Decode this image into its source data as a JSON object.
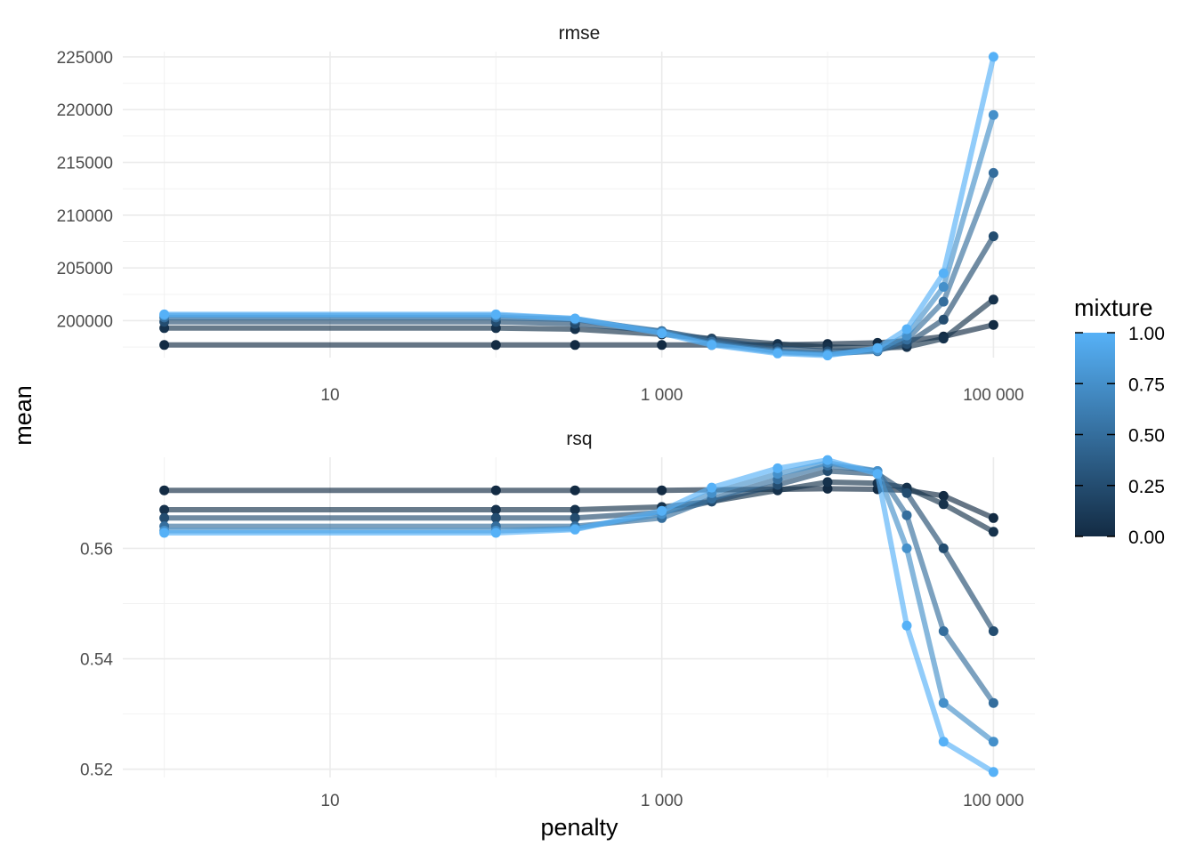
{
  "chart_data": {
    "type": "line",
    "xlabel": "penalty",
    "ylabel": "mean",
    "x_scale": "log10",
    "x_range": [
      1,
      100000
    ],
    "x_ticks": [
      10,
      1000,
      100000
    ],
    "x_tick_labels": [
      "10",
      "1 000",
      "100 000"
    ],
    "color_variable": "mixture",
    "color_range": [
      0,
      1
    ],
    "color_low": "#132B43",
    "color_high": "#56B1F7",
    "legend": {
      "title": "mixture",
      "position": "right",
      "ticks": [
        0.0,
        0.25,
        0.5,
        0.75,
        1.0
      ],
      "tick_labels": [
        "0.00",
        "0.25",
        "0.50",
        "0.75",
        "1.00"
      ]
    },
    "grid": true,
    "panels": [
      {
        "label": "rmse",
        "ylim": [
          196500,
          225500
        ],
        "y_ticks": [
          200000,
          205000,
          210000,
          215000,
          220000,
          225000
        ],
        "y_tick_labels": [
          "200000",
          "205000",
          "210000",
          "215000",
          "220000",
          "225000"
        ],
        "x": [
          1,
          100,
          300,
          1000,
          2000,
          5000,
          10000,
          20000,
          30000,
          50000,
          100000
        ],
        "series": [
          {
            "mixture": 0.0,
            "values": [
              197700,
              197700,
              197700,
              197700,
              197700,
              197700,
              197800,
              197900,
              198100,
              198500,
              199600
            ]
          },
          {
            "mixture": 0.05,
            "values": [
              199300,
              199300,
              199200,
              198700,
              198300,
              197800,
              197500,
              197400,
              197500,
              198300,
              202000
            ]
          },
          {
            "mixture": 0.25,
            "values": [
              199900,
              199900,
              199700,
              199000,
              198200,
              197400,
              197100,
              197200,
              197800,
              200100,
              208000
            ]
          },
          {
            "mixture": 0.5,
            "values": [
              200300,
              200300,
              200100,
              199000,
              198000,
              197100,
              196900,
              197100,
              198200,
              201800,
              214000
            ]
          },
          {
            "mixture": 0.75,
            "values": [
              200500,
              200500,
              200200,
              198900,
              197800,
              197000,
              196800,
              197200,
              198600,
              203200,
              219500
            ]
          },
          {
            "mixture": 1.0,
            "values": [
              200600,
              200600,
              200200,
              198800,
              197700,
              196900,
              196700,
              197400,
              199200,
              204500,
              225000
            ]
          }
        ]
      },
      {
        "label": "rsq",
        "ylim": [
          0.5185,
          0.5765
        ],
        "y_ticks": [
          0.52,
          0.54,
          0.56
        ],
        "y_tick_labels": [
          "0.52",
          "0.54",
          "0.56"
        ],
        "x": [
          1,
          100,
          300,
          1000,
          2000,
          5000,
          10000,
          20000,
          30000,
          50000,
          100000
        ],
        "series": [
          {
            "mixture": 0.0,
            "values": [
              0.5705,
              0.5705,
              0.5705,
              0.5705,
              0.5706,
              0.5707,
              0.5708,
              0.5707,
              0.5705,
              0.5695,
              0.5655
            ]
          },
          {
            "mixture": 0.05,
            "values": [
              0.567,
              0.567,
              0.567,
              0.5675,
              0.5685,
              0.5705,
              0.572,
              0.5718,
              0.571,
              0.568,
              0.563
            ]
          },
          {
            "mixture": 0.25,
            "values": [
              0.5655,
              0.5655,
              0.5655,
              0.5665,
              0.5685,
              0.5715,
              0.574,
              0.5735,
              0.57,
              0.56,
              0.545
            ]
          },
          {
            "mixture": 0.5,
            "values": [
              0.564,
              0.564,
              0.564,
              0.5655,
              0.569,
              0.5725,
              0.575,
              0.574,
              0.566,
              0.545,
              0.532
            ]
          },
          {
            "mixture": 0.75,
            "values": [
              0.5632,
              0.5632,
              0.5636,
              0.5662,
              0.57,
              0.5735,
              0.5755,
              0.574,
              0.56,
              0.532,
              0.525
            ]
          },
          {
            "mixture": 1.0,
            "values": [
              0.5628,
              0.5628,
              0.5634,
              0.5668,
              0.571,
              0.5745,
              0.576,
              0.5735,
              0.546,
              0.525,
              0.5195
            ]
          }
        ]
      }
    ]
  }
}
